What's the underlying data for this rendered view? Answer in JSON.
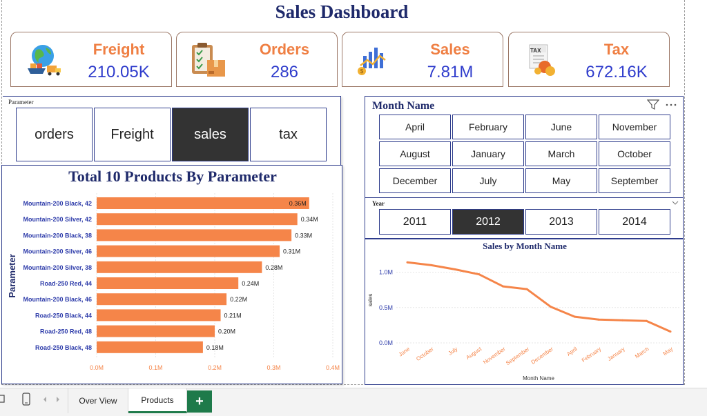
{
  "dashboard": {
    "title": "Sales Dashboard"
  },
  "kpis": [
    {
      "label": "Freight",
      "value": "210.05K",
      "icon": "globe-freight-icon"
    },
    {
      "label": "Orders",
      "value": "286",
      "icon": "clipboard-box-icon"
    },
    {
      "label": "Sales",
      "value": "7.81M",
      "icon": "chart-coin-icon"
    },
    {
      "label": "Tax",
      "value": "672.16K",
      "icon": "tax-document-icon"
    }
  ],
  "parameter_slicer": {
    "label": "Parameter",
    "options": [
      "orders",
      "Freight",
      "sales",
      "tax"
    ],
    "selected": "sales"
  },
  "month_slicer": {
    "title": "Month Name",
    "options": [
      "April",
      "February",
      "June",
      "November",
      "August",
      "January",
      "March",
      "October",
      "December",
      "July",
      "May",
      "September"
    ]
  },
  "year_slicer": {
    "label": "Year",
    "options": [
      "2011",
      "2012",
      "2013",
      "2014"
    ],
    "selected": "2012"
  },
  "tabs": {
    "items": [
      "Over View",
      "Products"
    ],
    "active": "Products",
    "add_label": "+"
  },
  "colors": {
    "accent": "#f58549",
    "title": "#1f2a6b",
    "kpi_value": "#2f3ccc",
    "axis_label": "#2e3caa",
    "dark": "#333333",
    "tab_green": "#1e7a4a"
  },
  "chart_data": [
    {
      "type": "bar",
      "orientation": "horizontal",
      "title": "Total 10 Products By Parameter",
      "ylabel": "Parameter",
      "categories": [
        "Mountain-200 Black, 42",
        "Mountain-200 Silver, 42",
        "Mountain-200 Black, 38",
        "Mountain-200 Silver, 46",
        "Mountain-200 Silver, 38",
        "Road-250 Red, 44",
        "Mountain-200 Black, 46",
        "Road-250 Black, 44",
        "Road-250 Red, 48",
        "Road-250 Black, 48"
      ],
      "values": [
        0.36,
        0.34,
        0.33,
        0.31,
        0.28,
        0.24,
        0.22,
        0.21,
        0.2,
        0.18
      ],
      "value_labels": [
        "0.36M",
        "0.34M",
        "0.33M",
        "0.31M",
        "0.28M",
        "0.24M",
        "0.22M",
        "0.21M",
        "0.20M",
        "0.18M"
      ],
      "xlim": [
        0,
        0.4
      ],
      "xticks": [
        "0.0M",
        "0.1M",
        "0.2M",
        "0.3M",
        "0.4M"
      ],
      "color": "#f58549"
    },
    {
      "type": "line",
      "title": "Sales by Month Name",
      "xlabel": "Month Name",
      "ylabel": "sales",
      "categories": [
        "June",
        "October",
        "July",
        "August",
        "November",
        "September",
        "December",
        "April",
        "February",
        "January",
        "March",
        "May"
      ],
      "values": [
        1.14,
        1.1,
        1.04,
        0.97,
        0.8,
        0.76,
        0.51,
        0.37,
        0.33,
        0.32,
        0.31,
        0.16
      ],
      "ylim": [
        0,
        1.25
      ],
      "yticks": [
        0,
        0.5,
        1.0
      ],
      "ytick_labels": [
        "0.0M",
        "0.5M",
        "1.0M"
      ],
      "color": "#f58549",
      "grid": true
    }
  ]
}
